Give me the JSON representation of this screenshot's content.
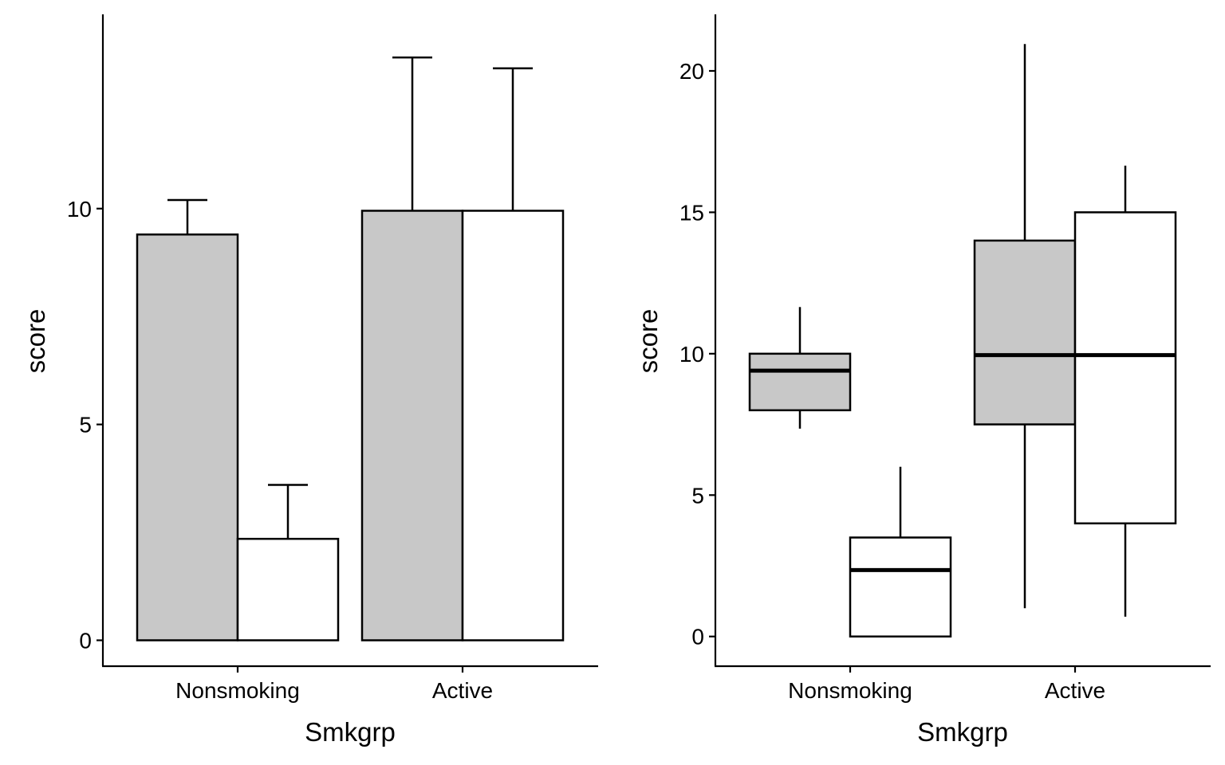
{
  "chart_data": [
    {
      "type": "bar",
      "panel": "left",
      "xlabel": "Smkgrp",
      "ylabel": "score",
      "categories": [
        "Nonsmoking",
        "Active"
      ],
      "ylim": [
        -0.6,
        14.5
      ],
      "yticks": [
        0,
        5,
        10
      ],
      "series": [
        {
          "fill": "#c8c8c8",
          "values": [
            9.4,
            9.95
          ],
          "err_upper": [
            10.2,
            13.5
          ]
        },
        {
          "fill": "#ffffff",
          "values": [
            2.35,
            9.95
          ],
          "err_upper": [
            3.6,
            13.25
          ]
        }
      ],
      "grid": false,
      "legend": "none"
    },
    {
      "type": "box",
      "panel": "right",
      "xlabel": "Smkgrp",
      "ylabel": "score",
      "categories": [
        "Nonsmoking",
        "Active"
      ],
      "ylim": [
        -1.05,
        22
      ],
      "yticks": [
        0,
        5,
        10,
        15,
        20
      ],
      "series": [
        {
          "fill": "#c8c8c8",
          "boxes": [
            {
              "category": "Nonsmoking",
              "whisker_low": 7.35,
              "q1": 8.0,
              "median": 9.4,
              "q3": 10.0,
              "whisker_high": 11.65
            },
            {
              "category": "Active",
              "whisker_low": 1.0,
              "q1": 7.5,
              "median": 9.95,
              "q3": 14.0,
              "whisker_high": 20.95
            }
          ]
        },
        {
          "fill": "#ffffff",
          "boxes": [
            {
              "category": "Nonsmoking",
              "whisker_low": 0.0,
              "q1": 0.0,
              "median": 2.35,
              "q3": 3.5,
              "whisker_high": 6.0
            },
            {
              "category": "Active",
              "whisker_low": 0.7,
              "q1": 4.0,
              "median": 9.95,
              "q3": 15.0,
              "whisker_high": 16.65
            }
          ]
        }
      ],
      "grid": false,
      "legend": "none"
    }
  ]
}
